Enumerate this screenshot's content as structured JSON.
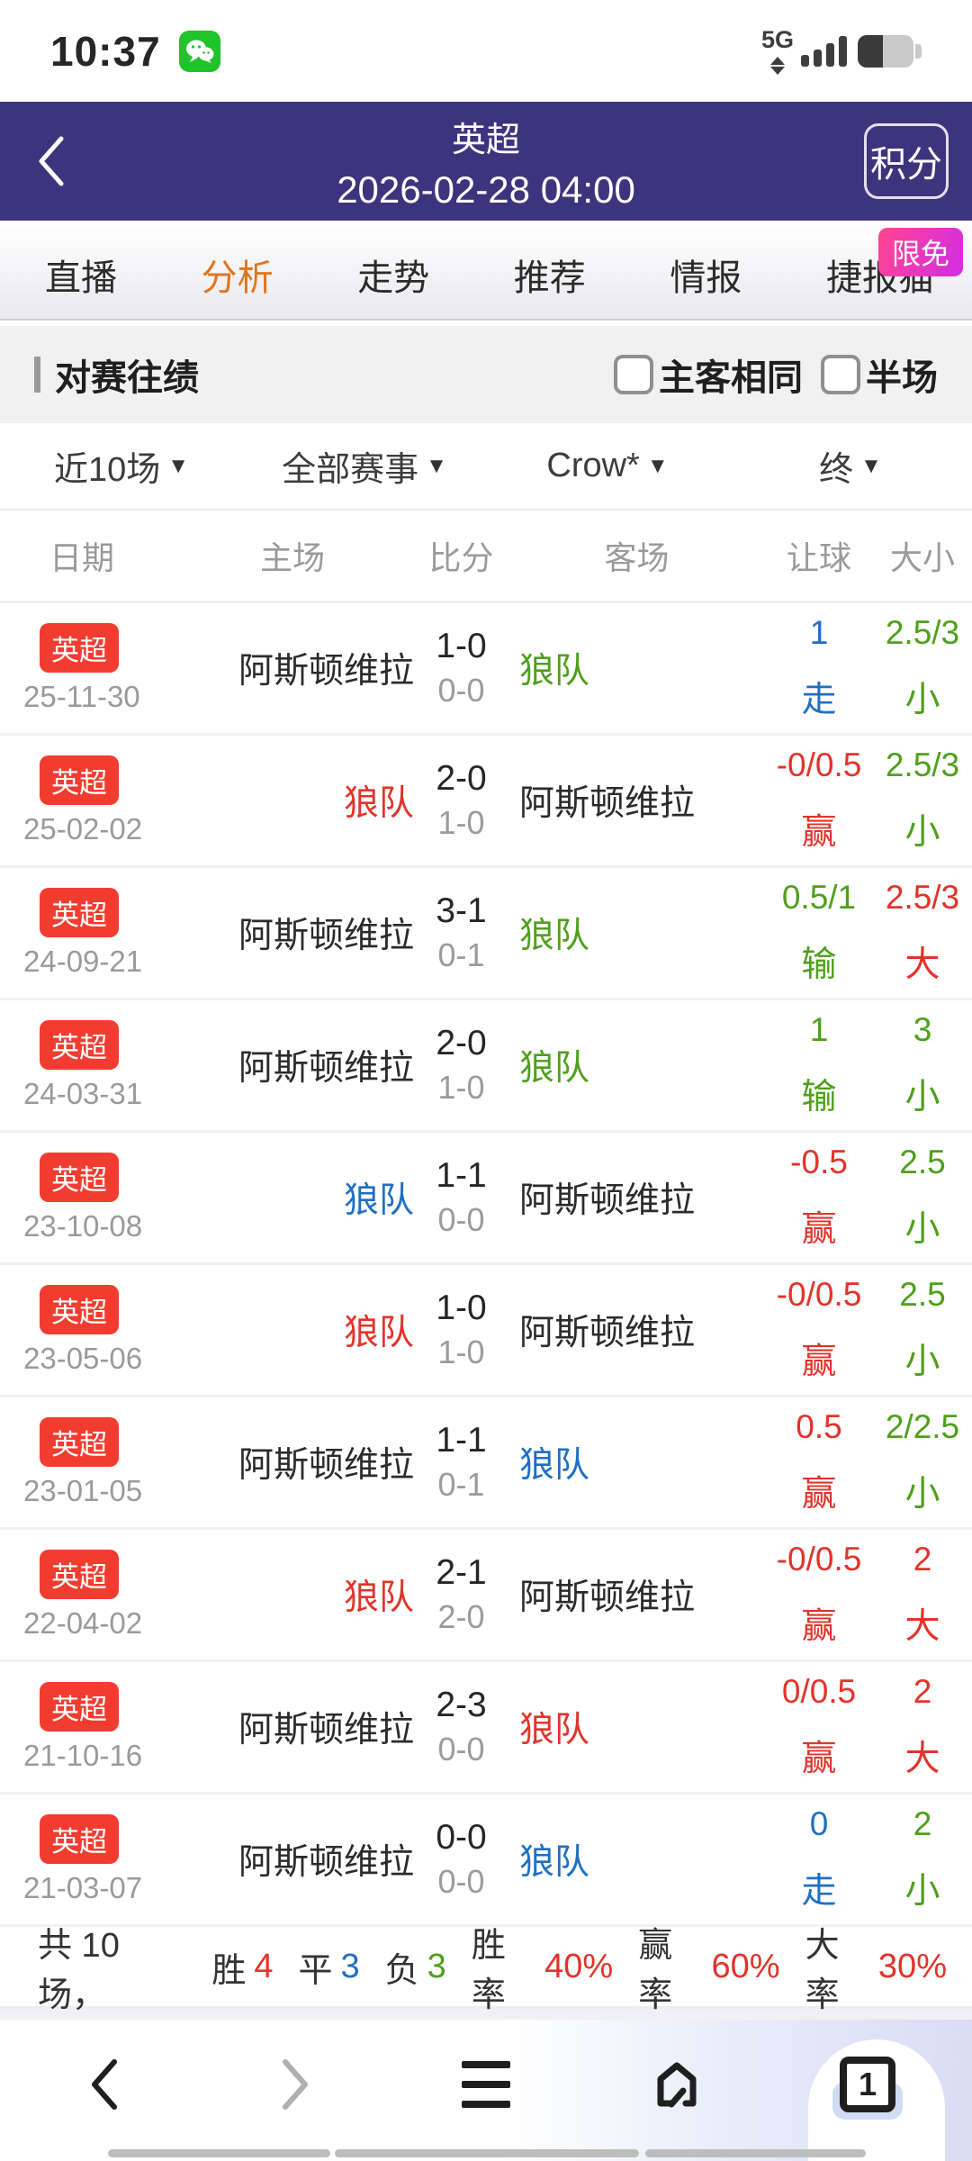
{
  "status_bar": {
    "time": "10:37",
    "network_label": "5G"
  },
  "header": {
    "title": "英超",
    "datetime": "2026-02-28 04:00",
    "action_label": "积分"
  },
  "tabs": {
    "items": [
      {
        "label": "直播",
        "active": false
      },
      {
        "label": "分析",
        "active": true
      },
      {
        "label": "走势",
        "active": false
      },
      {
        "label": "推荐",
        "active": false
      },
      {
        "label": "情报",
        "active": false
      },
      {
        "label": "捷报猫",
        "active": false
      }
    ],
    "promo_badge": "限免"
  },
  "h2h": {
    "title": "对赛往绩",
    "checkboxes": [
      {
        "label": "主客相同",
        "checked": false
      },
      {
        "label": "半场",
        "checked": false
      }
    ],
    "filters": [
      {
        "label": "近10场"
      },
      {
        "label": "全部赛事"
      },
      {
        "label": "Crow*"
      },
      {
        "label": "终"
      }
    ],
    "columns": [
      "日期",
      "主场",
      "比分",
      "客场",
      "让球",
      "大小"
    ],
    "rows": [
      {
        "league": "英超",
        "date": "25-11-30",
        "home": "阿斯顿维拉",
        "home_color": "black",
        "score": "1-0",
        "half": "0-0",
        "away": "狼队",
        "away_color": "green",
        "handicap": "1",
        "handicap_result": "走",
        "handicap_color": "blue",
        "overunder": "2.5/3",
        "overunder_result": "小",
        "overunder_color": "green"
      },
      {
        "league": "英超",
        "date": "25-02-02",
        "home": "狼队",
        "home_color": "red",
        "score": "2-0",
        "half": "1-0",
        "away": "阿斯顿维拉",
        "away_color": "black",
        "handicap": "-0/0.5",
        "handicap_result": "赢",
        "handicap_color": "red",
        "overunder": "2.5/3",
        "overunder_result": "小",
        "overunder_color": "green"
      },
      {
        "league": "英超",
        "date": "24-09-21",
        "home": "阿斯顿维拉",
        "home_color": "black",
        "score": "3-1",
        "half": "0-1",
        "away": "狼队",
        "away_color": "green",
        "handicap": "0.5/1",
        "handicap_result": "输",
        "handicap_color": "green",
        "overunder": "2.5/3",
        "overunder_result": "大",
        "overunder_color": "red"
      },
      {
        "league": "英超",
        "date": "24-03-31",
        "home": "阿斯顿维拉",
        "home_color": "black",
        "score": "2-0",
        "half": "1-0",
        "away": "狼队",
        "away_color": "green",
        "handicap": "1",
        "handicap_result": "输",
        "handicap_color": "green",
        "overunder": "3",
        "overunder_result": "小",
        "overunder_color": "green"
      },
      {
        "league": "英超",
        "date": "23-10-08",
        "home": "狼队",
        "home_color": "blue",
        "score": "1-1",
        "half": "0-0",
        "away": "阿斯顿维拉",
        "away_color": "black",
        "handicap": "-0.5",
        "handicap_result": "赢",
        "handicap_color": "red",
        "overunder": "2.5",
        "overunder_result": "小",
        "overunder_color": "green"
      },
      {
        "league": "英超",
        "date": "23-05-06",
        "home": "狼队",
        "home_color": "red",
        "score": "1-0",
        "half": "1-0",
        "away": "阿斯顿维拉",
        "away_color": "black",
        "handicap": "-0/0.5",
        "handicap_result": "赢",
        "handicap_color": "red",
        "overunder": "2.5",
        "overunder_result": "小",
        "overunder_color": "green"
      },
      {
        "league": "英超",
        "date": "23-01-05",
        "home": "阿斯顿维拉",
        "home_color": "black",
        "score": "1-1",
        "half": "0-1",
        "away": "狼队",
        "away_color": "blue",
        "handicap": "0.5",
        "handicap_result": "赢",
        "handicap_color": "red",
        "overunder": "2/2.5",
        "overunder_result": "小",
        "overunder_color": "green"
      },
      {
        "league": "英超",
        "date": "22-04-02",
        "home": "狼队",
        "home_color": "red",
        "score": "2-1",
        "half": "2-0",
        "away": "阿斯顿维拉",
        "away_color": "black",
        "handicap": "-0/0.5",
        "handicap_result": "赢",
        "handicap_color": "red",
        "overunder": "2",
        "overunder_result": "大",
        "overunder_color": "red"
      },
      {
        "league": "英超",
        "date": "21-10-16",
        "home": "阿斯顿维拉",
        "home_color": "black",
        "score": "2-3",
        "half": "0-0",
        "away": "狼队",
        "away_color": "red",
        "handicap": "0/0.5",
        "handicap_result": "赢",
        "handicap_color": "red",
        "overunder": "2",
        "overunder_result": "大",
        "overunder_color": "red"
      },
      {
        "league": "英超",
        "date": "21-03-07",
        "home": "阿斯顿维拉",
        "home_color": "black",
        "score": "0-0",
        "half": "0-0",
        "away": "狼队",
        "away_color": "blue",
        "handicap": "0",
        "handicap_result": "走",
        "handicap_color": "blue",
        "overunder": "2",
        "overunder_result": "小",
        "overunder_color": "green"
      }
    ],
    "summary": {
      "lead": "共 10 场，",
      "pairs": [
        {
          "label": "胜",
          "value": "4",
          "color": "red"
        },
        {
          "label": "平",
          "value": "3",
          "color": "blue"
        },
        {
          "label": "负",
          "value": "3",
          "color": "green"
        },
        {
          "label": "胜率",
          "value": "40%",
          "color": "red"
        },
        {
          "label": "赢率",
          "value": "60%",
          "color": "red"
        },
        {
          "label": "大率",
          "value": "30%",
          "color": "red"
        }
      ]
    }
  },
  "bottom_nav": {
    "tab_count": "1"
  },
  "colors": {
    "header_bg": "#3E347E",
    "active_tab_orange": "#E2751D",
    "league_badge_red": "#F23C30",
    "win_red": "#E2332A",
    "draw_blue": "#1E6FC4",
    "loss_green": "#4EA01B",
    "promo_pink": "#FF4590",
    "promo_magenta": "#D32CE6"
  }
}
